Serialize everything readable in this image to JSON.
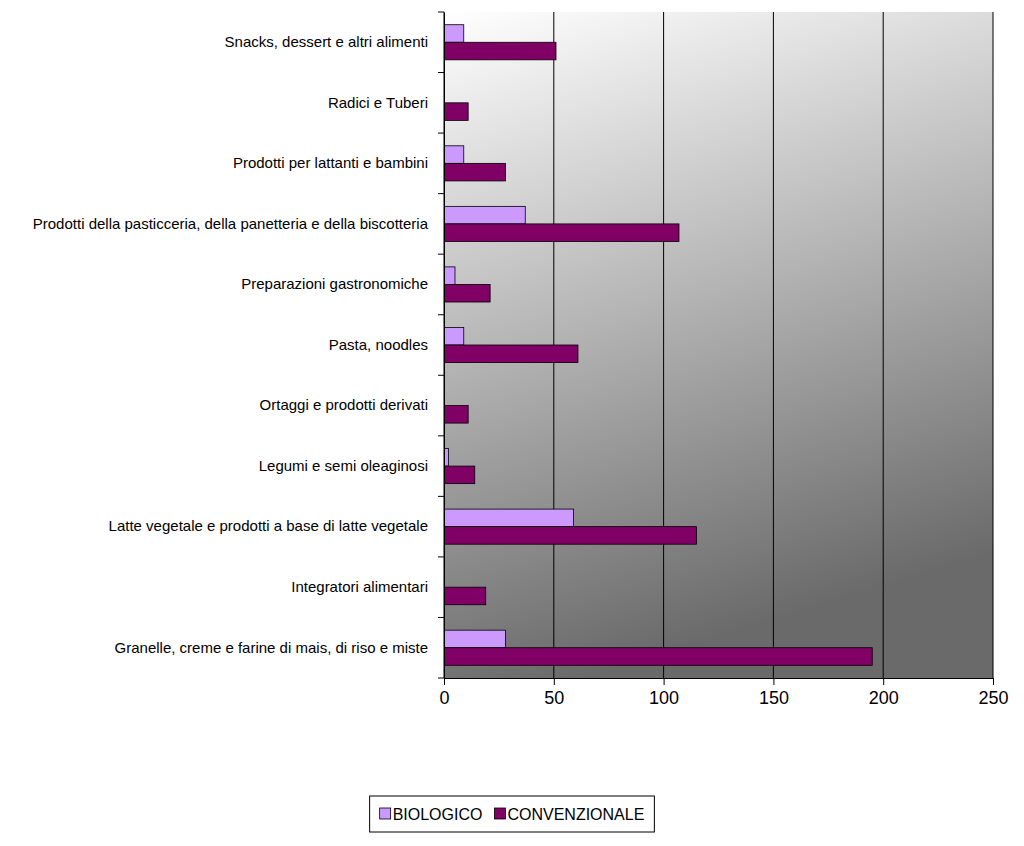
{
  "chart_data": {
    "type": "bar",
    "orientation": "horizontal",
    "categories": [
      "Snacks, dessert e altri alimenti",
      "Radici e Tuberi",
      "Prodotti per lattanti e bambini",
      "Prodotti della pasticceria, della panetteria e della biscotteria",
      "Preparazioni gastronomiche",
      "Pasta, noodles",
      "Ortaggi e prodotti derivati",
      "Legumi e semi oleaginosi",
      "Latte vegetale e prodotti a base di latte vegetale",
      "Integratori alimentari",
      "Granelle, creme e farine di mais, di riso e miste"
    ],
    "series": [
      {
        "name": "BIOLOGICO",
        "color": "#cc99ff",
        "values": [
          9,
          0,
          9,
          37,
          5,
          9,
          0,
          2,
          59,
          0,
          28
        ]
      },
      {
        "name": "CONVENZIONALE",
        "color": "#800066",
        "values": [
          51,
          11,
          28,
          107,
          21,
          61,
          11,
          14,
          115,
          19,
          195
        ]
      }
    ],
    "xlim": [
      0,
      250
    ],
    "xticks": [
      0,
      50,
      100,
      150,
      200,
      250
    ],
    "grid": true,
    "legend": "bottom"
  }
}
